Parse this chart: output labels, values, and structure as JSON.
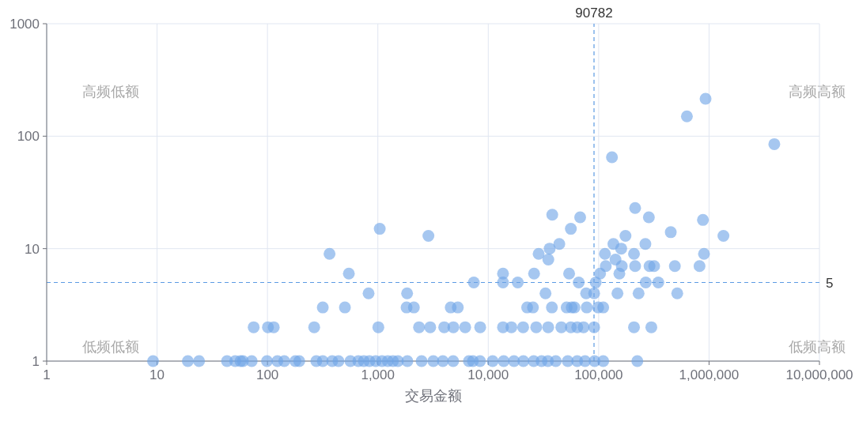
{
  "chart_data": {
    "type": "scatter",
    "xlabel": "交易金额",
    "log": "xy",
    "grid": true,
    "marker": "circle",
    "color": "#6fa5e6",
    "xlim": [
      1,
      10000000
    ],
    "xticks": [
      1,
      10,
      100,
      {
        "value": 1000,
        "label": "1,000"
      },
      {
        "value": 10000,
        "label": "10,000"
      },
      {
        "value": 100000,
        "label": "100,000"
      },
      {
        "value": 1000000,
        "label": "1,000,000"
      },
      {
        "value": 10000000,
        "label": "10,000,000"
      }
    ],
    "ylim": [
      1,
      1000
    ],
    "yticks": [
      1,
      10,
      100,
      1000
    ],
    "ref_lines": [
      {
        "axis": "x",
        "value": 90782,
        "label": "90782",
        "color": "#5b9ae3",
        "line_style": "dashed"
      },
      {
        "axis": "y",
        "value": 5,
        "label": "5",
        "color": "#5b9ae3",
        "line_style": "dashed"
      }
    ],
    "annotations": [
      "高频低额",
      "高频高额",
      "低频低额",
      "低频高额"
    ],
    "x": [
      930000,
      630000,
      3900000,
      132000,
      214000,
      68000,
      285000,
      880000,
      56000,
      450000,
      1350000,
      175000,
      136000,
      160000,
      265000,
      209000,
      114000,
      900000,
      142000,
      116000,
      162000,
      214000,
      289000,
      318000,
      490000,
      820000,
      103000,
      154000,
      54000,
      66000,
      94000,
      267000,
      347000,
      91000,
      77000,
      148000,
      230000,
      515000,
      57000,
      78000,
      99000,
      110000,
      56000,
      64000,
      73000,
      91000,
      209000,
      300000,
      224000,
      38000,
      44000,
      36000,
      28600,
      35000,
      26000,
      13600,
      1040,
      2870,
      365,
      546,
      7400,
      13600,
      18500,
      824,
      1840,
      33000,
      317,
      503,
      1820,
      2120,
      4570,
      5300,
      22500,
      25400,
      37700,
      51300,
      60400,
      265,
      1010,
      2360,
      2980,
      3990,
      4830,
      6180,
      8450,
      13600,
      16200,
      20700,
      27200,
      34900,
      45900,
      75,
      101,
      114,
      9.2,
      19,
      24,
      43,
      51,
      57,
      60,
      72,
      99,
      123,
      142,
      179,
      194,
      277,
      317,
      386,
      440,
      564,
      665,
      746,
      838,
      957,
      1090,
      1230,
      1370,
      1520,
      1850,
      2490,
      3180,
      3880,
      4810,
      6680,
      7260,
      8420,
      10960,
      13800,
      17100,
      20800,
      25800,
      30400,
      34700,
      40900,
      52500,
      63900,
      75300,
      91800,
      110000
    ],
    "values": [
      215,
      150,
      85,
      65,
      23,
      19,
      19,
      18,
      15,
      14,
      13,
      13,
      11,
      10,
      11,
      9,
      9,
      9,
      8,
      7,
      7,
      7,
      7,
      7,
      7,
      7,
      6,
      6,
      6,
      5,
      5,
      5,
      5,
      4,
      4,
      4,
      4,
      4,
      3,
      3,
      3,
      3,
      2,
      2,
      2,
      2,
      2,
      2,
      1,
      20,
      11,
      10,
      9,
      8,
      6,
      6,
      15,
      13,
      9,
      6,
      5,
      5,
      5,
      4,
      4,
      4,
      3,
      3,
      3,
      3,
      3,
      3,
      3,
      3,
      3,
      3,
      3,
      2,
      2,
      2,
      2,
      2,
      2,
      2,
      2,
      2,
      2,
      2,
      2,
      2,
      2,
      2,
      2,
      2,
      1,
      1,
      1,
      1,
      1,
      1,
      1,
      1,
      1,
      1,
      1,
      1,
      1,
      1,
      1,
      1,
      1,
      1,
      1,
      1,
      1,
      1,
      1,
      1,
      1,
      1,
      1,
      1,
      1,
      1,
      1,
      1,
      1,
      1,
      1,
      1,
      1,
      1,
      1,
      1,
      1,
      1,
      1,
      1,
      1,
      1,
      1
    ]
  }
}
